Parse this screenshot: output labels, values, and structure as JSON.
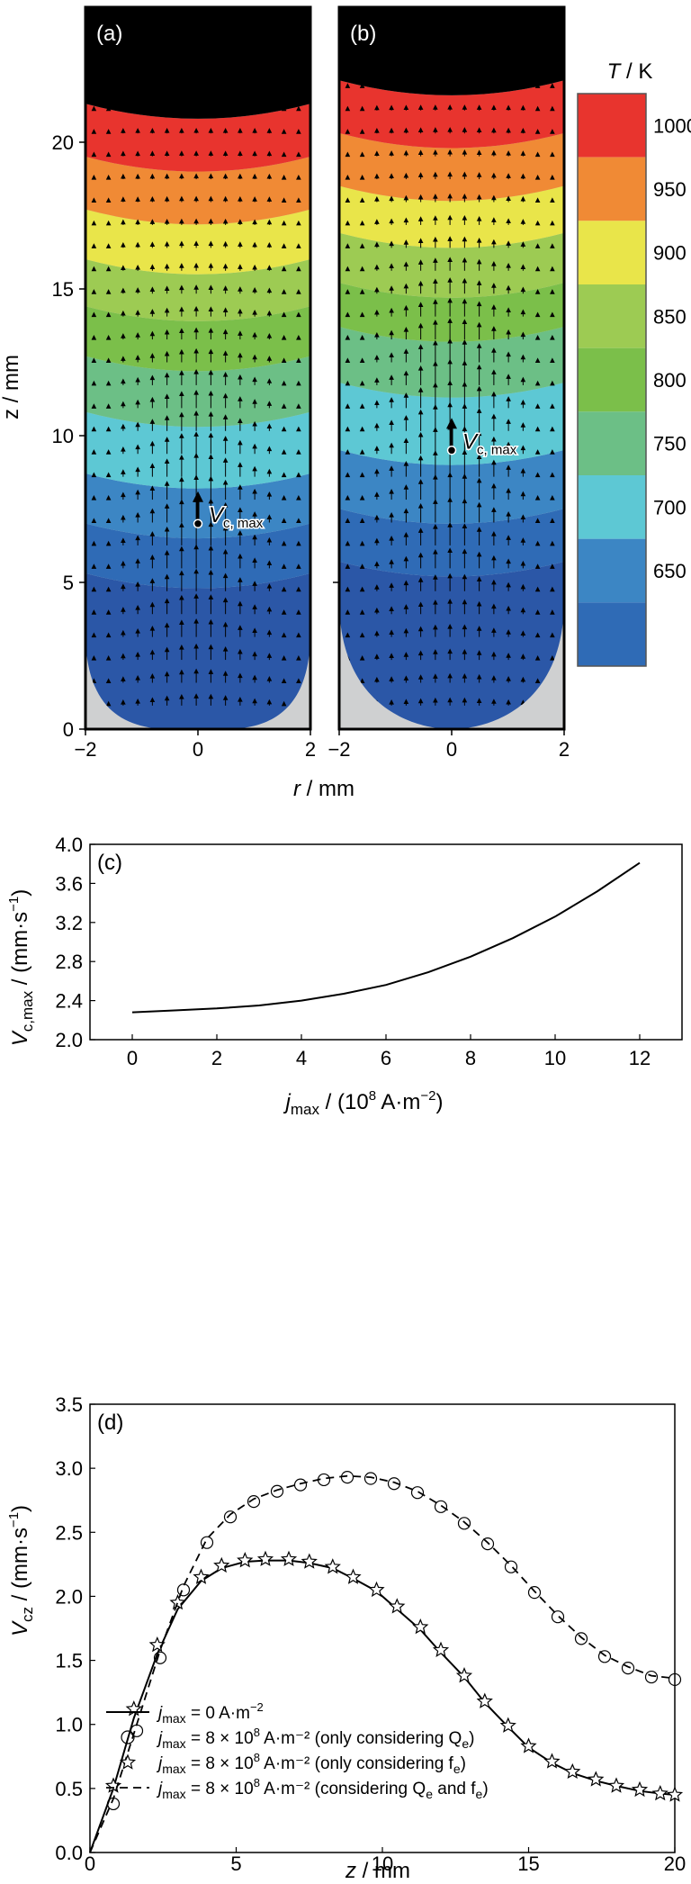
{
  "chart_data": [
    {
      "id": "fields",
      "type": "heatmap",
      "colorbar_title": "T / K",
      "colorbar_ticks": [
        650,
        700,
        750,
        800,
        850,
        900,
        950,
        1000
      ],
      "levels": [
        {
          "T": 650,
          "color": "#2b57a7"
        },
        {
          "T": 675,
          "color": "#2f6bb6"
        },
        {
          "T": 725,
          "color": "#3c86c4"
        },
        {
          "T": 775,
          "color": "#5dc8d4"
        },
        {
          "T": 825,
          "color": "#6cbf86"
        },
        {
          "T": 875,
          "color": "#7bbf4a"
        },
        {
          "T": 925,
          "color": "#9dcb53"
        },
        {
          "T": 975,
          "color": "#e9e54a"
        },
        {
          "T": 1000,
          "color": "#f08a35"
        },
        {
          "T": 1025,
          "color": "#e8342e"
        }
      ],
      "xlabel": "r / mm",
      "ylabel": "z / mm",
      "xlim": [
        -2,
        2
      ],
      "ylim": [
        0,
        25
      ],
      "xticks": [
        "−2",
        "0",
        "2"
      ],
      "yticks": [
        "0",
        "5",
        "10",
        "15",
        "20"
      ],
      "panels": [
        {
          "label": "(a)",
          "vmax_label": "V",
          "vmax_sub": "c, max",
          "vmax_z": 7,
          "boundaries": [
            4.8,
            6.5,
            8.2,
            10.3,
            12.2,
            13.9,
            15.5,
            17.2,
            19.0,
            20.8
          ]
        },
        {
          "label": "(b)",
          "vmax_label": "V",
          "vmax_sub": "c, max",
          "vmax_z": 9.5,
          "boundaries": [
            5.2,
            7.0,
            9.0,
            11.3,
            13.2,
            14.7,
            16.4,
            18.0,
            19.8,
            21.6
          ]
        }
      ]
    },
    {
      "id": "c",
      "type": "line",
      "panel_label": "(c)",
      "xlabel_main": "j",
      "xlabel_sub": "max",
      "xlabel_rest": " / (10",
      "xlabel_sup": "8",
      "xlabel_unit": " A·m",
      "xlabel_sup2": "−2",
      "xlabel_end": ")",
      "ylabel_main": "V",
      "ylabel_sub": "c,max",
      "ylabel_rest": " / (mm·s",
      "ylabel_sup": "−1",
      "ylabel_end": ")",
      "xlim": [
        -1,
        13
      ],
      "ylim": [
        2.0,
        4.0
      ],
      "xticks": [
        0,
        2,
        4,
        6,
        8,
        10,
        12
      ],
      "yticks": [
        "2.0",
        "2.4",
        "2.8",
        "3.2",
        "3.6",
        "4.0"
      ],
      "x": [
        0,
        1,
        2,
        3,
        4,
        5,
        6,
        7,
        8,
        9,
        10,
        11,
        12
      ],
      "y": [
        2.28,
        2.3,
        2.32,
        2.35,
        2.4,
        2.47,
        2.56,
        2.69,
        2.85,
        3.04,
        3.26,
        3.52,
        3.81
      ]
    },
    {
      "id": "d",
      "type": "line",
      "panel_label": "(d)",
      "xlabel": "z / mm",
      "ylabel_main": "V",
      "ylabel_sub": "cz",
      "ylabel_rest": " / (mm·s",
      "ylabel_sup": "−1",
      "ylabel_end": ")",
      "xlim": [
        0,
        20
      ],
      "ylim": [
        0,
        3.5
      ],
      "xticks": [
        0,
        5,
        10,
        15,
        20
      ],
      "yticks": [
        "0.0",
        "0.5",
        "1.0",
        "1.5",
        "2.0",
        "2.5",
        "3.0",
        "3.5"
      ],
      "series": [
        {
          "legend_j": "j",
          "legend_sub": "max",
          "legend_text": " = 0 A·m",
          "legend_sup": "−2",
          "legend_end": "",
          "style": "solid",
          "x": [
            0,
            0.8,
            1.5,
            2.3,
            3.0,
            3.8,
            4.5,
            5.3,
            6.0,
            6.8,
            7.5,
            8.3,
            9.0,
            9.8,
            10.5,
            11.3,
            12.0,
            12.8,
            13.5,
            14.3,
            15.0,
            15.8,
            16.5,
            17.3,
            18.0,
            18.8,
            19.5,
            20.0
          ],
          "y": [
            0,
            0.5,
            1.05,
            1.55,
            1.9,
            2.12,
            2.22,
            2.27,
            2.28,
            2.28,
            2.26,
            2.22,
            2.14,
            2.04,
            1.9,
            1.74,
            1.56,
            1.37,
            1.17,
            0.98,
            0.82,
            0.7,
            0.62,
            0.56,
            0.52,
            0.48,
            0.46,
            0.45
          ]
        },
        {
          "legend_j": "j",
          "legend_sub": "max",
          "legend_text": " = 8 × 10",
          "legend_sup": "8",
          "legend_end": " A·m⁻² (only considering Q",
          "legend_sub2": "e",
          "legend_close": ")",
          "style": "circle",
          "x": [
            0,
            0.8,
            1.6,
            2.4,
            3.2,
            4.0,
            4.8,
            5.6,
            6.4,
            7.2,
            8.0,
            8.8,
            9.6,
            10.4,
            11.2,
            12.0,
            12.8,
            13.6,
            14.4,
            15.2,
            16.0,
            16.8,
            17.6,
            18.4,
            19.2,
            20.0
          ],
          "y": [
            0,
            0.38,
            0.95,
            1.52,
            2.05,
            2.42,
            2.62,
            2.74,
            2.82,
            2.87,
            2.91,
            2.93,
            2.92,
            2.88,
            2.81,
            2.7,
            2.57,
            2.41,
            2.23,
            2.03,
            1.84,
            1.67,
            1.53,
            1.44,
            1.37,
            1.35
          ]
        },
        {
          "legend_j": "j",
          "legend_sub": "max",
          "legend_text": " = 8 × 10",
          "legend_sup": "8",
          "legend_end": " A·m⁻² (only considering f",
          "legend_sub2": "e",
          "legend_close": ")",
          "style": "star",
          "x": [
            0,
            0.8,
            1.5,
            2.3,
            3.0,
            3.8,
            4.5,
            5.3,
            6.0,
            6.8,
            7.5,
            8.3,
            9.0,
            9.8,
            10.5,
            11.3,
            12.0,
            12.8,
            13.5,
            14.3,
            15.0,
            15.8,
            16.5,
            17.3,
            18.0,
            18.8,
            19.5,
            20.0
          ],
          "y": [
            0,
            0.52,
            1.12,
            1.62,
            1.95,
            2.15,
            2.24,
            2.28,
            2.29,
            2.29,
            2.27,
            2.23,
            2.15,
            2.05,
            1.92,
            1.76,
            1.58,
            1.38,
            1.18,
            0.99,
            0.83,
            0.71,
            0.63,
            0.57,
            0.52,
            0.49,
            0.46,
            0.45
          ]
        },
        {
          "legend_j": "j",
          "legend_sub": "max",
          "legend_text": " = 8 × 10",
          "legend_sup": "8",
          "legend_end": " A·m⁻² (considering Q",
          "legend_sub2": "e",
          "legend_close": " and f",
          "legend_sub3": "e",
          "legend_close2": ")",
          "style": "dashed",
          "x": [
            0,
            0.8,
            1.6,
            2.4,
            3.2,
            4.0,
            4.8,
            5.6,
            6.4,
            7.2,
            8.0,
            8.8,
            9.6,
            10.4,
            11.2,
            12.0,
            12.8,
            13.6,
            14.4,
            15.2,
            16.0,
            16.8,
            17.6,
            18.4,
            19.2,
            20.0
          ],
          "y": [
            0,
            0.42,
            1.0,
            1.58,
            2.08,
            2.45,
            2.64,
            2.76,
            2.83,
            2.88,
            2.92,
            2.94,
            2.93,
            2.89,
            2.82,
            2.71,
            2.58,
            2.42,
            2.24,
            2.04,
            1.85,
            1.68,
            1.54,
            1.45,
            1.38,
            1.36
          ]
        }
      ]
    }
  ]
}
